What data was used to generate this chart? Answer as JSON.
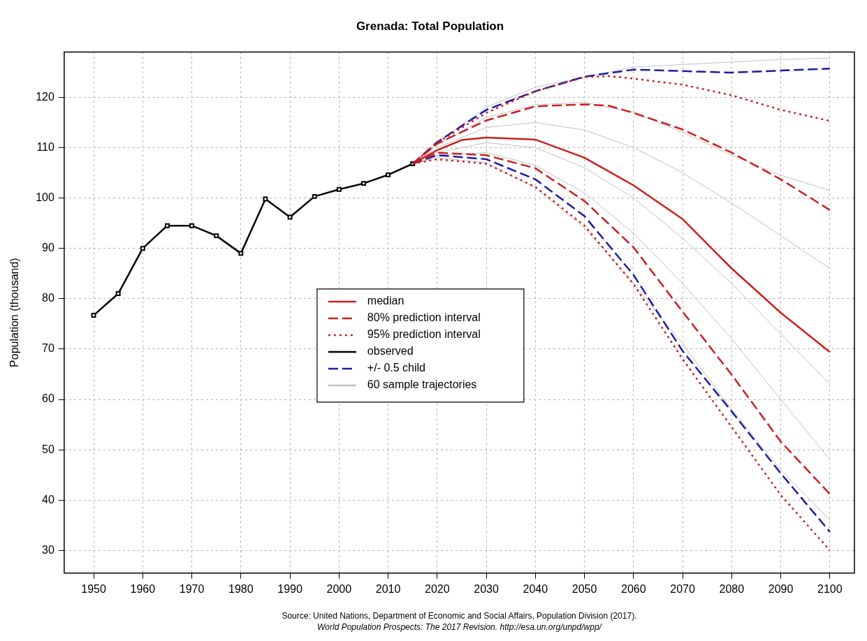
{
  "chart_data": {
    "type": "line",
    "title": "Grenada: Total Population",
    "ylabel": "Population (thousand)",
    "xlim": [
      1944,
      2105
    ],
    "ylim": [
      25.5,
      129
    ],
    "xticks": [
      1950,
      1960,
      1970,
      1980,
      1990,
      2000,
      2010,
      2020,
      2030,
      2040,
      2050,
      2060,
      2070,
      2080,
      2090,
      2100
    ],
    "yticks": [
      30,
      40,
      50,
      60,
      70,
      80,
      90,
      100,
      110,
      120
    ],
    "grid": true,
    "legend": "center",
    "annotations": [
      "Source: United Nations, Department of Economic and Social Affairs, Population Division (2017).",
      "World Population Prospects: The 2017 Revision. http://esa.un.org/unpd/wpp/"
    ],
    "series": [
      {
        "name": "median",
        "color": "#cc1f1f",
        "line_style": "solid",
        "x": [
          2015,
          2020,
          2025,
          2030,
          2040,
          2050,
          2060,
          2070,
          2080,
          2090,
          2100
        ],
        "values": [
          106.8,
          109.5,
          111.5,
          112,
          111.6,
          108,
          102.5,
          95.8,
          86,
          77.2,
          69.4
        ]
      },
      {
        "name": "80% prediction interval",
        "color": "#cc1f1f",
        "line_style": "dashed",
        "x": [
          2015,
          2020,
          2030,
          2040,
          2050,
          2055,
          2060,
          2070,
          2080,
          2090,
          2100
        ],
        "values": [
          106.8,
          110.8,
          115.4,
          118.2,
          118.6,
          118.3,
          116.9,
          113.6,
          109,
          103.7,
          97.6
        ]
      },
      {
        "name": "95% prediction interval",
        "color": "#cc1f1f",
        "line_style": "dotted",
        "x": [
          2015,
          2020,
          2030,
          2040,
          2050,
          2055,
          2060,
          2070,
          2080,
          2090,
          2100
        ],
        "values": [
          106.8,
          111,
          116.9,
          121.2,
          124,
          124.2,
          123.7,
          122.5,
          120.4,
          117.5,
          115.3
        ]
      },
      {
        "name": "observed",
        "color": "#000000",
        "line_style": "solid",
        "marker": "square",
        "x": [
          1950,
          1955,
          1960,
          1965,
          1970,
          1975,
          1980,
          1985,
          1990,
          1995,
          2000,
          2005,
          2010,
          2015
        ],
        "values": [
          76.7,
          81,
          90,
          94.5,
          94.5,
          92.5,
          89,
          99.8,
          96.2,
          100.3,
          101.7,
          102.9,
          104.6,
          106.8
        ]
      },
      {
        "name": "+/- 0.5 child",
        "color": "#1a1aa6",
        "line_style": "dashed",
        "x": [
          2015,
          2020,
          2030,
          2040,
          2050,
          2060,
          2070,
          2080,
          2090,
          2100
        ],
        "values": [
          106.8,
          111.1,
          117.5,
          121.2,
          124.1,
          125.5,
          125.2,
          124.9,
          125.3,
          125.7
        ]
      },
      {
        "name": "60 sample trajectories",
        "color": "#c0c0c0",
        "line_style": "solid",
        "x": [
          2015,
          2020,
          2030,
          2040,
          2050,
          2060,
          2070,
          2080,
          2090,
          2100
        ],
        "values": [
          106.8,
          111,
          118,
          122,
          124,
          126,
          126.5,
          127,
          127.5,
          127.8
        ]
      },
      {
        "color": "#cc1f1f",
        "line_style": "dashed",
        "x": [
          2015,
          2020,
          2030,
          2040,
          2050,
          2060,
          2070,
          2080,
          2090,
          2100
        ],
        "values": [
          106.8,
          109,
          108.5,
          105.9,
          99.4,
          90.2,
          77.4,
          64.9,
          51.6,
          41.2
        ]
      },
      {
        "color": "#cc1f1f",
        "line_style": "dotted",
        "x": [
          2015,
          2020,
          2030,
          2040,
          2050,
          2060,
          2070,
          2080,
          2090,
          2100
        ],
        "values": [
          106.8,
          107.7,
          106.8,
          102.2,
          94.5,
          82.9,
          68,
          54.5,
          41,
          30
        ]
      },
      {
        "color": "#1a1aa6",
        "line_style": "dashed",
        "x": [
          2015,
          2020,
          2030,
          2040,
          2050,
          2060,
          2070,
          2080,
          2090,
          2100
        ],
        "values": [
          106.8,
          108.5,
          107.7,
          103.7,
          96.4,
          84.7,
          69.6,
          57.6,
          45.3,
          33.7
        ]
      },
      {
        "color": "#c0c0c0",
        "line_style": "solid",
        "x": [
          2015,
          2020,
          2030,
          2040,
          2050,
          2060,
          2070,
          2080,
          2090,
          2100
        ],
        "values": [
          106.8,
          110.5,
          116,
          118.5,
          119,
          117,
          113,
          108.5,
          104.5,
          101.5
        ]
      },
      {
        "color": "#c0c0c0",
        "line_style": "solid",
        "x": [
          2015,
          2020,
          2030,
          2040,
          2050,
          2060,
          2070,
          2080,
          2090,
          2100
        ],
        "values": [
          106.8,
          110,
          114,
          115,
          113.5,
          110,
          105,
          99,
          92.5,
          86
        ]
      },
      {
        "color": "#c0c0c0",
        "line_style": "solid",
        "x": [
          2015,
          2020,
          2030,
          2040,
          2050,
          2060,
          2070,
          2080,
          2090,
          2100
        ],
        "values": [
          106.8,
          109,
          111,
          110,
          106,
          100,
          92,
          83,
          73,
          63
        ]
      },
      {
        "color": "#c0c0c0",
        "line_style": "solid",
        "x": [
          2015,
          2020,
          2030,
          2040,
          2050,
          2060,
          2070,
          2080,
          2090,
          2100
        ],
        "values": [
          106.8,
          108.5,
          109,
          106.5,
          101,
          93,
          83,
          72,
          60,
          48
        ]
      },
      {
        "color": "#c0c0c0",
        "line_style": "solid",
        "x": [
          2015,
          2020,
          2030,
          2040,
          2050,
          2060,
          2070,
          2080,
          2090,
          2100
        ],
        "values": [
          106.8,
          108,
          107,
          102,
          94,
          83,
          71,
          58,
          46,
          36
        ]
      }
    ]
  }
}
